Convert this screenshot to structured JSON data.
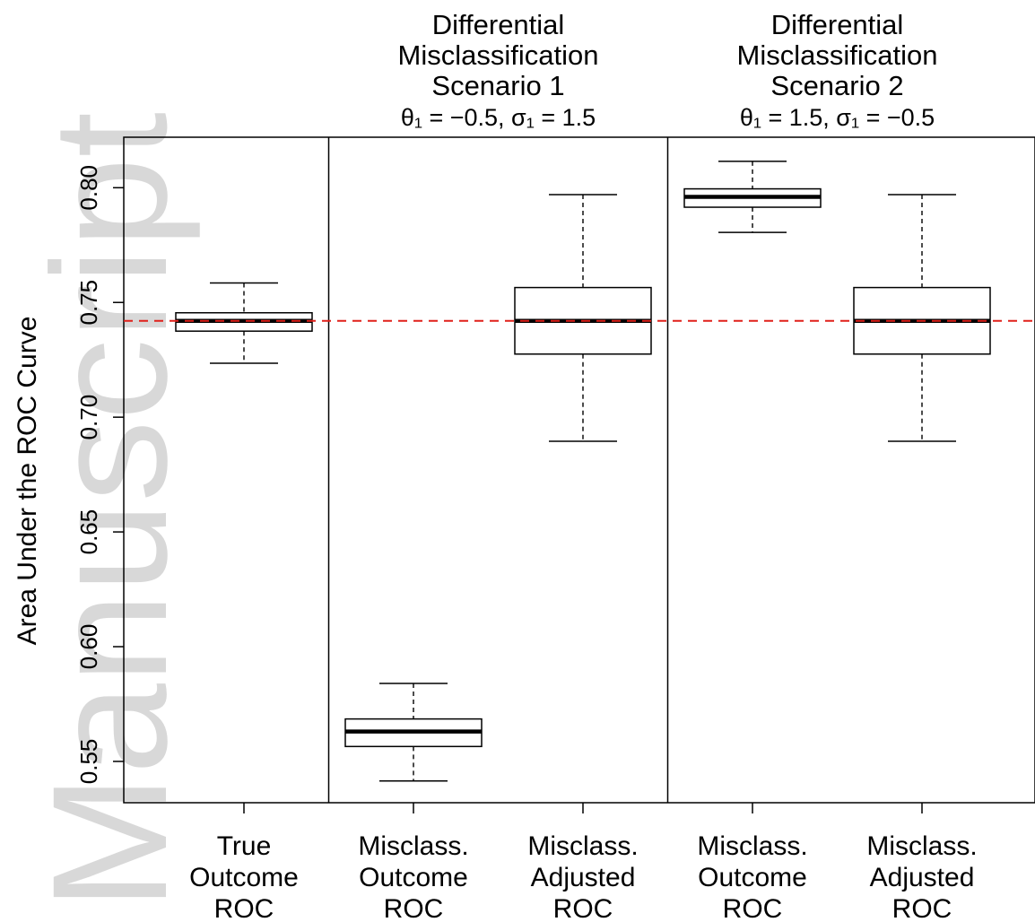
{
  "watermark": "Manuscript",
  "chart_data": {
    "type": "box",
    "ylabel": "Area Under the ROC Curve",
    "ylim": [
      0.532,
      0.822
    ],
    "yticks": [
      "0.55",
      "0.60",
      "0.65",
      "0.70",
      "0.75",
      "0.80"
    ],
    "ytick_values": [
      0.55,
      0.6,
      0.65,
      0.7,
      0.75,
      0.8
    ],
    "reference_line": {
      "value": 0.742,
      "color": "#e0201a",
      "style": "dashed"
    },
    "panel_headers": [
      {
        "lines": [
          "Differential",
          "Misclassification",
          "Scenario 1"
        ],
        "params": "θ₁ = −0.5, σ₁ = 1.5"
      },
      {
        "lines": [
          "Differential",
          "Misclassification",
          "Scenario 2"
        ],
        "params": "θ₁ = 1.5, σ₁ = −0.5"
      }
    ],
    "boxes": [
      {
        "label": [
          "True",
          "Outcome",
          "ROC"
        ],
        "min": 0.7235,
        "q1": 0.7375,
        "median": 0.742,
        "q3": 0.7455,
        "max": 0.7585
      },
      {
        "label": [
          "Misclass.",
          "Outcome",
          "ROC"
        ],
        "min": 0.5415,
        "q1": 0.5565,
        "median": 0.563,
        "q3": 0.5685,
        "max": 0.584
      },
      {
        "label": [
          "Misclass.",
          "Adjusted",
          "ROC"
        ],
        "min": 0.6895,
        "q1": 0.7275,
        "median": 0.742,
        "q3": 0.7565,
        "max": 0.797
      },
      {
        "label": [
          "Misclass.",
          "Outcome",
          "ROC"
        ],
        "min": 0.7805,
        "q1": 0.7915,
        "median": 0.796,
        "q3": 0.7995,
        "max": 0.8115
      },
      {
        "label": [
          "Misclass.",
          "Adjusted",
          "ROC"
        ],
        "min": 0.6895,
        "q1": 0.7275,
        "median": 0.742,
        "q3": 0.7565,
        "max": 0.797
      }
    ],
    "panel_dividers_after_box": [
      1,
      3
    ],
    "grid": false
  }
}
